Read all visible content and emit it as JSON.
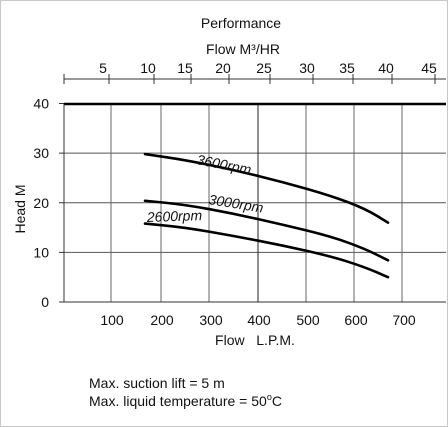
{
  "chart_data": {
    "type": "line",
    "title": "Performance",
    "top_axis": {
      "label": "Flow  M³/HR",
      "ticks": [
        "5",
        "10",
        "15",
        "20",
        "25",
        "30",
        "35",
        "40",
        "45"
      ],
      "tick_values": [
        5,
        10,
        15,
        20,
        25,
        30,
        35,
        40,
        45
      ]
    },
    "xlabel": "Flow   L.P.M.",
    "ylabel": "Head   M",
    "x_ticks": [
      "100",
      "200",
      "300",
      "400",
      "500",
      "600",
      "700"
    ],
    "x_tick_values": [
      100,
      200,
      300,
      400,
      500,
      600,
      700
    ],
    "y_ticks": [
      "0",
      "10",
      "20",
      "30",
      "40"
    ],
    "y_tick_values": [
      0,
      10,
      20,
      30,
      40
    ],
    "xlim": [
      0,
      780
    ],
    "ylim": [
      0,
      40
    ],
    "grid": true,
    "series": [
      {
        "name": "3600rpm",
        "x": [
          167,
          250,
          350,
          450,
          550,
          620,
          667
        ],
        "y": [
          29.8,
          28.6,
          26.6,
          24.2,
          21.4,
          18.8,
          16.0
        ]
      },
      {
        "name": "3000rpm",
        "x": [
          167,
          250,
          350,
          450,
          550,
          620,
          667
        ],
        "y": [
          20.4,
          19.6,
          17.8,
          15.6,
          13.2,
          10.7,
          8.4
        ]
      },
      {
        "name": "2600rpm",
        "x": [
          167,
          250,
          350,
          450,
          550,
          620,
          667
        ],
        "y": [
          15.8,
          15.0,
          13.3,
          11.4,
          9.2,
          7.0,
          5.0
        ]
      }
    ]
  },
  "notes": {
    "line1": "Max. suction lift = 5 m",
    "line2_text": "Max. liquid temperature = 50",
    "line2_sup": "o",
    "line2_unit": "C"
  }
}
